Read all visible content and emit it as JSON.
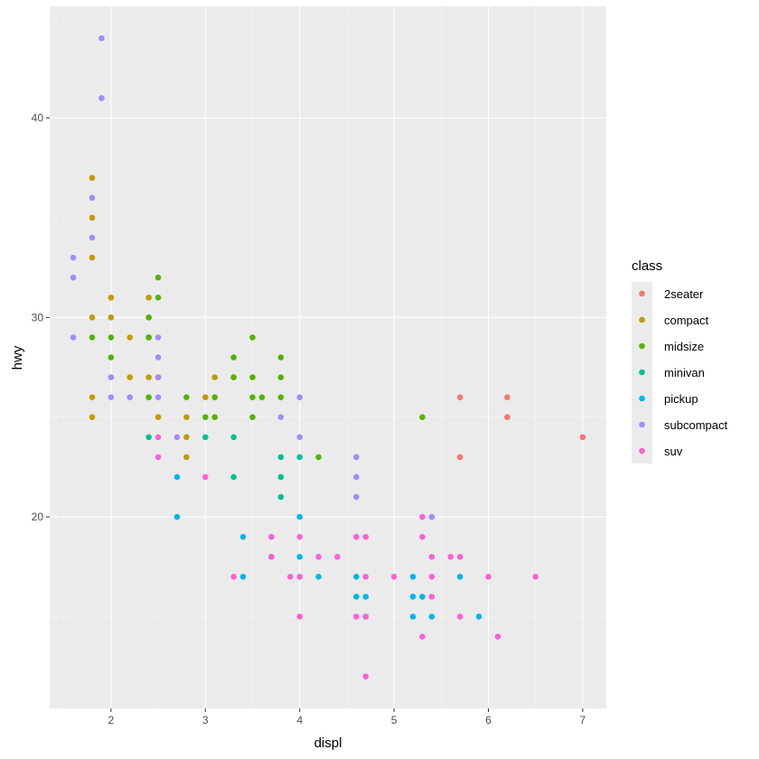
{
  "chart_data": {
    "type": "scatter",
    "title": "",
    "xlabel": "displ",
    "ylabel": "hwy",
    "xlim": [
      1.35,
      7.25
    ],
    "ylim": [
      10.4,
      45.6
    ],
    "x_ticks": [
      2,
      3,
      4,
      5,
      6,
      7
    ],
    "x_tick_labels": [
      "2",
      "3",
      "4",
      "5",
      "6",
      "7"
    ],
    "y_ticks": [
      20,
      30,
      40
    ],
    "y_tick_labels": [
      "20",
      "30",
      "40"
    ],
    "grid": true,
    "legend": {
      "title": "class",
      "position": "right"
    },
    "series": [
      {
        "name": "2seater",
        "color": "#F8766D",
        "points": [
          [
            5.7,
            26
          ],
          [
            5.7,
            23
          ],
          [
            6.2,
            26
          ],
          [
            6.2,
            25
          ],
          [
            7.0,
            24
          ]
        ]
      },
      {
        "name": "compact",
        "color": "#C49A00",
        "points": [
          [
            1.8,
            37
          ],
          [
            1.8,
            35
          ],
          [
            1.8,
            33
          ],
          [
            1.8,
            30
          ],
          [
            1.8,
            26
          ],
          [
            1.8,
            25
          ],
          [
            2.0,
            31
          ],
          [
            2.0,
            30
          ],
          [
            2.2,
            29
          ],
          [
            2.2,
            27
          ],
          [
            2.4,
            31
          ],
          [
            2.4,
            30
          ],
          [
            2.4,
            29
          ],
          [
            2.4,
            27
          ],
          [
            2.5,
            27
          ],
          [
            2.5,
            25
          ],
          [
            2.8,
            25
          ],
          [
            2.8,
            24
          ],
          [
            2.8,
            23
          ],
          [
            3.0,
            26
          ],
          [
            3.1,
            27
          ],
          [
            3.3,
            27
          ]
        ]
      },
      {
        "name": "midsize",
        "color": "#53B400",
        "points": [
          [
            1.8,
            29
          ],
          [
            2.0,
            29
          ],
          [
            2.0,
            28
          ],
          [
            2.4,
            30
          ],
          [
            2.4,
            29
          ],
          [
            2.4,
            26
          ],
          [
            2.5,
            32
          ],
          [
            2.5,
            31
          ],
          [
            2.8,
            26
          ],
          [
            3.0,
            25
          ],
          [
            3.1,
            26
          ],
          [
            3.1,
            25
          ],
          [
            3.3,
            28
          ],
          [
            3.3,
            27
          ],
          [
            3.5,
            29
          ],
          [
            3.5,
            27
          ],
          [
            3.5,
            26
          ],
          [
            3.5,
            25
          ],
          [
            3.6,
            26
          ],
          [
            3.8,
            28
          ],
          [
            3.8,
            27
          ],
          [
            3.8,
            26
          ],
          [
            4.2,
            23
          ],
          [
            5.3,
            25
          ]
        ]
      },
      {
        "name": "minivan",
        "color": "#00C094",
        "points": [
          [
            2.4,
            24
          ],
          [
            3.0,
            24
          ],
          [
            3.3,
            24
          ],
          [
            3.3,
            22
          ],
          [
            3.8,
            23
          ],
          [
            3.8,
            22
          ],
          [
            3.8,
            21
          ],
          [
            4.0,
            23
          ]
        ]
      },
      {
        "name": "pickup",
        "color": "#00B6EB",
        "points": [
          [
            2.7,
            22
          ],
          [
            2.7,
            20
          ],
          [
            3.4,
            19
          ],
          [
            3.4,
            17
          ],
          [
            3.7,
            18
          ],
          [
            4.0,
            20
          ],
          [
            4.0,
            18
          ],
          [
            4.2,
            17
          ],
          [
            4.6,
            17
          ],
          [
            4.6,
            16
          ],
          [
            4.7,
            16
          ],
          [
            4.7,
            15
          ],
          [
            5.2,
            17
          ],
          [
            5.2,
            16
          ],
          [
            5.2,
            15
          ],
          [
            5.3,
            16
          ],
          [
            5.4,
            15
          ],
          [
            5.7,
            17
          ],
          [
            5.9,
            15
          ]
        ]
      },
      {
        "name": "subcompact",
        "color": "#A58AFF",
        "points": [
          [
            1.9,
            44
          ],
          [
            1.9,
            41
          ],
          [
            1.8,
            36
          ],
          [
            1.8,
            34
          ],
          [
            1.6,
            33
          ],
          [
            1.6,
            32
          ],
          [
            1.6,
            29
          ],
          [
            2.0,
            27
          ],
          [
            2.0,
            26
          ],
          [
            2.2,
            26
          ],
          [
            2.5,
            29
          ],
          [
            2.5,
            28
          ],
          [
            2.5,
            27
          ],
          [
            2.5,
            26
          ],
          [
            2.7,
            24
          ],
          [
            3.8,
            25
          ],
          [
            4.0,
            26
          ],
          [
            4.0,
            24
          ],
          [
            4.6,
            23
          ],
          [
            4.6,
            22
          ],
          [
            4.6,
            21
          ],
          [
            5.4,
            20
          ]
        ]
      },
      {
        "name": "suv",
        "color": "#FB61D7",
        "points": [
          [
            2.5,
            24
          ],
          [
            2.5,
            23
          ],
          [
            3.0,
            22
          ],
          [
            3.3,
            17
          ],
          [
            3.7,
            19
          ],
          [
            3.7,
            18
          ],
          [
            3.9,
            17
          ],
          [
            4.0,
            19
          ],
          [
            4.0,
            17
          ],
          [
            4.0,
            15
          ],
          [
            4.2,
            18
          ],
          [
            4.4,
            18
          ],
          [
            4.6,
            19
          ],
          [
            4.6,
            15
          ],
          [
            4.7,
            19
          ],
          [
            4.7,
            17
          ],
          [
            4.7,
            15
          ],
          [
            4.7,
            12
          ],
          [
            5.0,
            17
          ],
          [
            5.3,
            20
          ],
          [
            5.3,
            19
          ],
          [
            5.3,
            14
          ],
          [
            5.4,
            18
          ],
          [
            5.4,
            17
          ],
          [
            5.4,
            16
          ],
          [
            5.6,
            18
          ],
          [
            5.7,
            18
          ],
          [
            5.7,
            15
          ],
          [
            6.0,
            17
          ],
          [
            6.1,
            14
          ],
          [
            6.5,
            17
          ]
        ]
      }
    ]
  }
}
